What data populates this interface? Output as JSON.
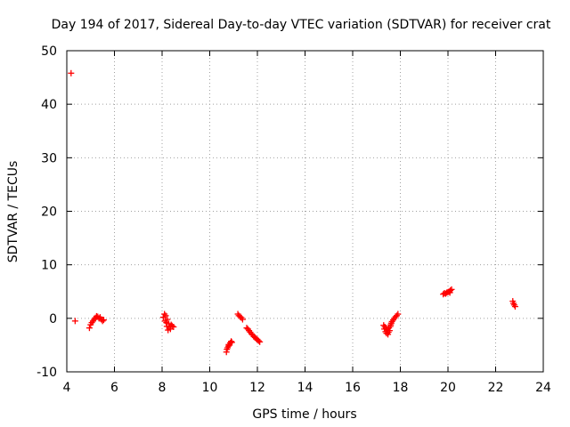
{
  "chart_data": {
    "type": "scatter",
    "title": "Day 194 of 2017, Sidereal Day-to-day VTEC variation (SDTVAR) for receiver crat",
    "xlabel": "GPS time / hours",
    "ylabel": "SDTVAR / TECUs",
    "xlim": [
      4,
      24
    ],
    "ylim": [
      -10,
      50
    ],
    "xticks": [
      "4",
      "6",
      "8",
      "10",
      "12",
      "14",
      "16",
      "18",
      "20",
      "22",
      "24"
    ],
    "yticks": [
      "-10",
      "0",
      "10",
      "20",
      "30",
      "40",
      "50"
    ],
    "grid": true,
    "marker": "+",
    "marker_color": "#ff0000",
    "series": [
      {
        "name": "SDTVAR",
        "points": [
          [
            4.18,
            45.8
          ],
          [
            4.35,
            -0.5
          ],
          [
            4.95,
            -1.8
          ],
          [
            5.0,
            -1.2
          ],
          [
            5.05,
            -0.8
          ],
          [
            5.1,
            -0.5
          ],
          [
            5.15,
            -0.2
          ],
          [
            5.2,
            0.1
          ],
          [
            5.25,
            0.4
          ],
          [
            5.3,
            0.3
          ],
          [
            5.35,
            0.0
          ],
          [
            5.4,
            0.2
          ],
          [
            5.45,
            -0.2
          ],
          [
            5.5,
            -0.5
          ],
          [
            5.55,
            -0.3
          ],
          [
            8.05,
            0.2
          ],
          [
            8.1,
            0.8
          ],
          [
            8.12,
            -0.5
          ],
          [
            8.15,
            0.5
          ],
          [
            8.18,
            -0.8
          ],
          [
            8.2,
            -1.5
          ],
          [
            8.22,
            -0.2
          ],
          [
            8.25,
            -2.2
          ],
          [
            8.28,
            -1.0
          ],
          [
            8.3,
            -1.6
          ],
          [
            8.35,
            -2.0
          ],
          [
            8.38,
            -1.2
          ],
          [
            8.42,
            -1.4
          ],
          [
            8.48,
            -1.6
          ],
          [
            10.7,
            -6.3
          ],
          [
            10.72,
            -5.8
          ],
          [
            10.75,
            -5.5
          ],
          [
            10.78,
            -5.2
          ],
          [
            10.8,
            -4.9
          ],
          [
            10.83,
            -5.0
          ],
          [
            10.86,
            -4.6
          ],
          [
            10.9,
            -4.3
          ],
          [
            10.93,
            -4.5
          ],
          [
            11.18,
            0.8
          ],
          [
            11.22,
            0.5
          ],
          [
            11.28,
            0.3
          ],
          [
            11.33,
            0.1
          ],
          [
            11.38,
            -0.2
          ],
          [
            11.55,
            -1.8
          ],
          [
            11.6,
            -2.0
          ],
          [
            11.65,
            -2.3
          ],
          [
            11.7,
            -2.6
          ],
          [
            11.75,
            -2.9
          ],
          [
            11.8,
            -3.1
          ],
          [
            11.85,
            -3.4
          ],
          [
            11.9,
            -3.6
          ],
          [
            11.95,
            -3.8
          ],
          [
            12.0,
            -4.0
          ],
          [
            12.05,
            -4.2
          ],
          [
            12.1,
            -4.4
          ],
          [
            17.3,
            -1.3
          ],
          [
            17.33,
            -2.0
          ],
          [
            17.35,
            -1.6
          ],
          [
            17.38,
            -2.5
          ],
          [
            17.4,
            -1.9
          ],
          [
            17.42,
            -2.8
          ],
          [
            17.45,
            -2.2
          ],
          [
            17.48,
            -3.0
          ],
          [
            17.5,
            -2.6
          ],
          [
            17.52,
            -1.8
          ],
          [
            17.55,
            -2.3
          ],
          [
            17.58,
            -1.5
          ],
          [
            17.6,
            -1.2
          ],
          [
            17.62,
            -0.9
          ],
          [
            17.65,
            -0.6
          ],
          [
            17.7,
            -0.3
          ],
          [
            17.75,
            0.0
          ],
          [
            17.8,
            0.3
          ],
          [
            17.85,
            0.5
          ],
          [
            17.9,
            0.8
          ],
          [
            19.8,
            4.5
          ],
          [
            19.85,
            4.7
          ],
          [
            19.9,
            4.6
          ],
          [
            19.95,
            4.8
          ],
          [
            20.0,
            4.9
          ],
          [
            20.05,
            5.0
          ],
          [
            20.08,
            4.8
          ],
          [
            20.1,
            5.2
          ],
          [
            20.15,
            5.4
          ],
          [
            22.72,
            3.2
          ],
          [
            22.75,
            2.8
          ],
          [
            22.78,
            2.5
          ],
          [
            22.82,
            2.2
          ]
        ]
      }
    ]
  }
}
